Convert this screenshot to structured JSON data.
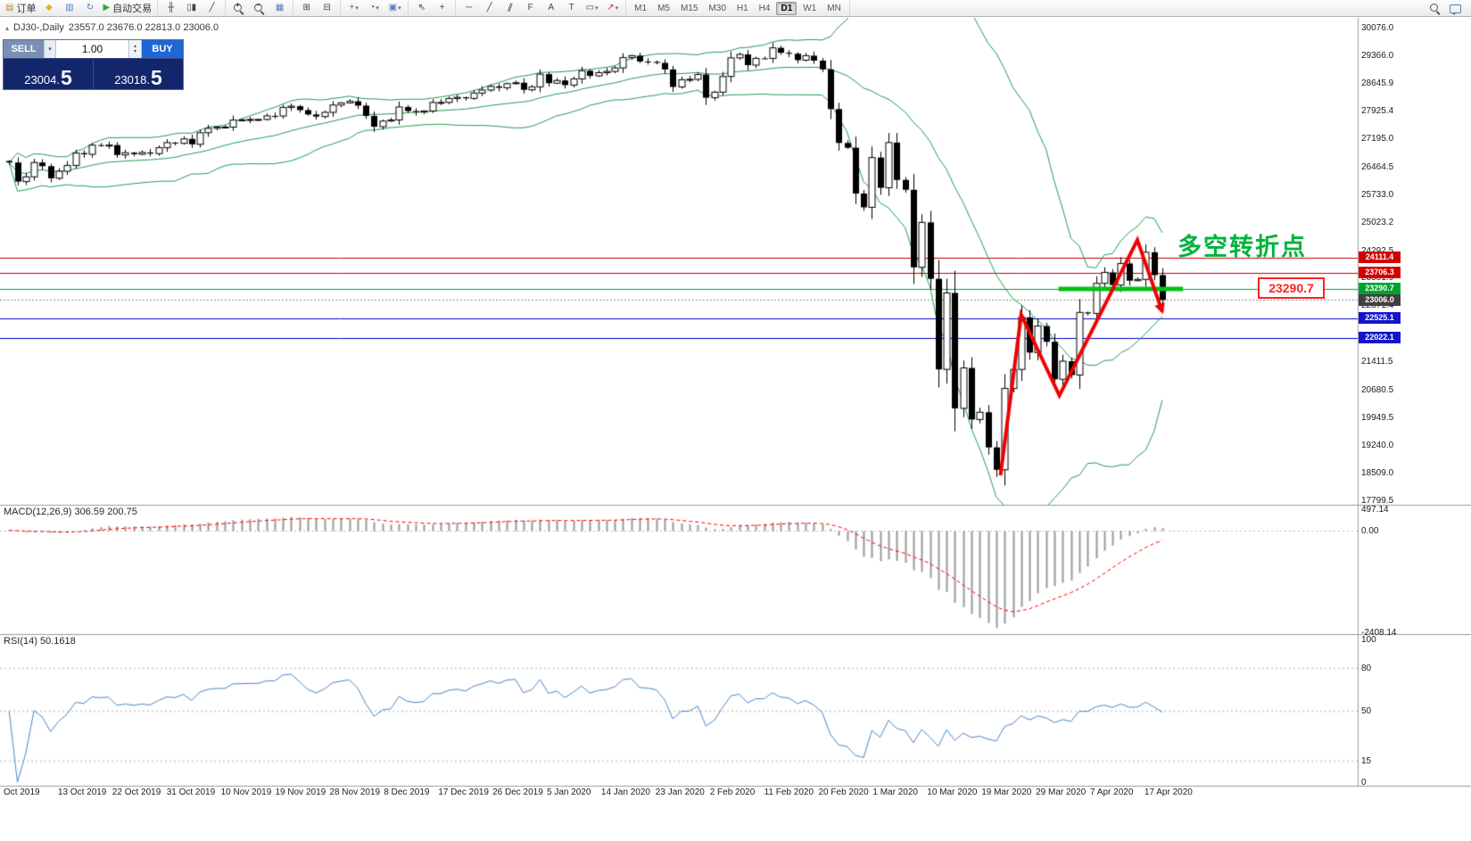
{
  "toolbar": {
    "groups": [
      {
        "items": [
          {
            "name": "new-order",
            "icon": "new-order-icon",
            "label": "订单"
          },
          {
            "name": "alerts",
            "icon": "bell-icon"
          },
          {
            "name": "market-watch",
            "icon": "list-icon"
          },
          {
            "name": "refresh",
            "icon": "refresh-icon"
          },
          {
            "name": "autotrading",
            "icon": "play-icon",
            "label": "自动交易"
          }
        ]
      },
      {
        "items": [
          {
            "name": "bar-chart-mode",
            "icon": "bars-icon"
          },
          {
            "name": "candle-chart-mode",
            "icon": "candles-icon"
          },
          {
            "name": "line-chart-mode",
            "icon": "line-icon"
          }
        ]
      },
      {
        "items": [
          {
            "name": "zoom-in",
            "icon": "zoom-in-icon"
          },
          {
            "name": "zoom-out",
            "icon": "zoom-out-icon"
          },
          {
            "name": "chart-grid",
            "icon": "grid-icon"
          }
        ]
      },
      {
        "items": [
          {
            "name": "tile-windows",
            "icon": "tile-icon"
          },
          {
            "name": "arrange-windows",
            "icon": "cascade-icon"
          }
        ]
      },
      {
        "items": [
          {
            "name": "add-indicator",
            "icon": "plus-icon",
            "caret": true
          },
          {
            "name": "periods",
            "icon": "clock-icon",
            "caret": true
          },
          {
            "name": "templates",
            "icon": "template-icon",
            "caret": true
          }
        ]
      },
      {
        "items": [
          {
            "name": "cursor-tool",
            "icon": "cursor-icon"
          },
          {
            "name": "crosshair-tool",
            "icon": "crosshair-icon"
          }
        ]
      },
      {
        "items": [
          {
            "name": "horizontal-line-tool",
            "icon": "hline-icon"
          },
          {
            "name": "trendline-tool",
            "icon": "trendline-icon"
          },
          {
            "name": "channel-tool",
            "icon": "channel-icon"
          },
          {
            "name": "fibonacci-tool",
            "icon": "fibo-icon"
          },
          {
            "name": "text-tool",
            "icon": "text-icon"
          },
          {
            "name": "label-tool",
            "icon": "label-icon"
          },
          {
            "name": "shapes-tool",
            "icon": "shapes-icon",
            "caret": true
          },
          {
            "name": "arrows-tool",
            "icon": "arrow-icon",
            "caret": true
          }
        ]
      }
    ],
    "timeframes": [
      "M1",
      "M5",
      "M15",
      "M30",
      "H1",
      "H4",
      "D1",
      "W1",
      "MN"
    ],
    "active_timeframe": "D1",
    "right_buttons": [
      {
        "name": "quick-search",
        "icon": "search-icon"
      },
      {
        "name": "chat",
        "icon": "chat-icon"
      }
    ]
  },
  "symbol": {
    "title": "DJ30-,Daily",
    "ohlc": "23557.0 23676.0 22813.0 23006.0"
  },
  "trade_panel": {
    "sell_label": "SELL",
    "buy_label": "BUY",
    "lot": "1.00",
    "sell_price_main": "23004.",
    "sell_price_big": "5",
    "buy_price_main": "23018.",
    "buy_price_big": "5"
  },
  "main_chart": {
    "price_range": {
      "top": 30076.0,
      "bottom": 17799.5
    },
    "axis_labels": [
      "30076.0",
      "29366.0",
      "28645.9",
      "27925.4",
      "27195.0",
      "26464.5",
      "25733.0",
      "25023.2",
      "24292.5",
      "23581.9",
      "22871.4",
      "21411.5",
      "20680.5",
      "19949.5",
      "19240.0",
      "18509.0",
      "17799.5"
    ],
    "tags": [
      {
        "text": "24111.4",
        "price": 24111.4,
        "color": "#d40000"
      },
      {
        "text": "23706.3",
        "price": 23706.3,
        "color": "#d40000"
      },
      {
        "text": "23290.7",
        "price": 23290.7,
        "color": "#00a32e"
      },
      {
        "text": "23006.0",
        "price": 23006.0,
        "color": "#404040"
      },
      {
        "text": "22525.1",
        "price": 22525.1,
        "color": "#1414c8"
      },
      {
        "text": "22022.1",
        "price": 22022.1,
        "color": "#1414c8"
      }
    ],
    "lines": [
      {
        "price": 24111.4,
        "color": "#cc0000",
        "style": "solid"
      },
      {
        "price": 23706.3,
        "color": "#cc0000",
        "style": "solid"
      },
      {
        "price": 23290.7,
        "color": "#00a032",
        "style": "solid"
      },
      {
        "price": 23006.0,
        "color": "#8a8a8a",
        "style": "dotted"
      },
      {
        "price": 22525.1,
        "color": "#0000cc",
        "style": "solid"
      },
      {
        "price": 22022.1,
        "color": "#0000cc",
        "style": "solid"
      }
    ],
    "highlight_segment": {
      "price": 23290.7,
      "from_bar": 126.5,
      "to_bar": 141.5,
      "color": "#00c213",
      "width": 5
    },
    "zigzag": {
      "color": "#f00000",
      "width": 4,
      "points": [
        {
          "bar": 119.5,
          "price": 18450
        },
        {
          "bar": 122.0,
          "price": 22620
        },
        {
          "bar": 126.6,
          "price": 20520
        },
        {
          "bar": 136.0,
          "price": 24560
        },
        {
          "bar": 139.0,
          "price": 22700
        }
      ]
    }
  },
  "annotations": {
    "turning_point_text": "多空转折点",
    "price_label": "23290.7"
  },
  "macd": {
    "label": "MACD(12,26,9) 306.59 200.75",
    "fast": 12,
    "slow": 26,
    "signal": 9,
    "axis": [
      {
        "text": "497.14",
        "value": 497.14
      },
      {
        "text": "0.00",
        "value": 0
      },
      {
        "text": "-2408.14",
        "value": -2408.14
      }
    ]
  },
  "rsi": {
    "label": "RSI(14) 50.1618",
    "period": 14,
    "levels": [
      80,
      50,
      15
    ],
    "axis": [
      {
        "text": "100",
        "value": 100
      },
      {
        "text": "80",
        "value": 80
      },
      {
        "text": "50",
        "value": 50
      },
      {
        "text": "15",
        "value": 15
      },
      {
        "text": "0",
        "value": 0
      }
    ]
  },
  "chart_data": {
    "type": "candlestick",
    "symbol": "DJ30-",
    "timeframe": "Daily",
    "indicators": [
      "Bollinger Bands(20,2)",
      "MACD(12,26,9)",
      "RSI(14)"
    ],
    "x_labels": [
      "Oct 2019",
      "13 Oct 2019",
      "22 Oct 2019",
      "31 Oct 2019",
      "10 Nov 2019",
      "19 Nov 2019",
      "28 Nov 2019",
      "8 Dec 2019",
      "17 Dec 2019",
      "26 Dec 2019",
      "5 Jan 2020",
      "14 Jan 2020",
      "23 Jan 2020",
      "2 Feb 2020",
      "11 Feb 2020",
      "20 Feb 2020",
      "1 Mar 2020",
      "10 Mar 2020",
      "19 Mar 2020",
      "29 Mar 2020",
      "7 Apr 2020",
      "17 Apr 2020"
    ],
    "closes": [
      26573,
      26078,
      26201,
      26574,
      26478,
      26164,
      26346,
      26496,
      26817,
      26787,
      27025,
      27002,
      27026,
      26770,
      26828,
      26788,
      26834,
      26805,
      26958,
      27090,
      27071,
      27186,
      27046,
      27347,
      27462,
      27493,
      27493,
      27675,
      27681,
      27691,
      27692,
      27784,
      27782,
      28005,
      28036,
      27934,
      27821,
      27766,
      27876,
      28066,
      28121,
      28164,
      28051,
      27783,
      27503,
      27650,
      27678,
      28015,
      27910,
      27882,
      27911,
      28132,
      28135,
      28236,
      28267,
      28239,
      28377,
      28455,
      28551,
      28515,
      28621,
      28645,
      28462,
      28538,
      28869,
      28635,
      28704,
      28584,
      28745,
      28957,
      28824,
      28907,
      28939,
      29030,
      29298,
      29348,
      29196,
      29186,
      29160,
      28990,
      28536,
      28723,
      28734,
      28859,
      28256,
      28400,
      28808,
      29291,
      29380,
      29103,
      29277,
      29276,
      29551,
      29423,
      29398,
      29232,
      29348,
      29220,
      28992,
      27961,
      27081,
      26958,
      25767,
      25409,
      26703,
      25917,
      27091,
      26121,
      25865,
      23851,
      25018,
      23553,
      21200,
      23186,
      20188,
      21237,
      19899,
      20087,
      19174,
      18592,
      20705,
      21200,
      22552,
      21637,
      22327,
      21917,
      20944,
      21413,
      21053,
      22680,
      22654,
      23434,
      23719,
      23391,
      23950,
      23504,
      23537,
      24242,
      23650,
      23006
    ]
  },
  "colors": {
    "bull": "#ffffff",
    "bear": "#000000",
    "wick": "#000000",
    "bollinger": "#1e9e50",
    "macd_hist": "#999999",
    "macd_signal": "#ff0000",
    "rsi_line": "#4a86c8",
    "accent_green": "#00b33c",
    "accent_red": "#ff2222",
    "panel_navy": "#14266b",
    "buy_blue": "#1f66d6",
    "sell_slate": "#7b8fb3"
  }
}
